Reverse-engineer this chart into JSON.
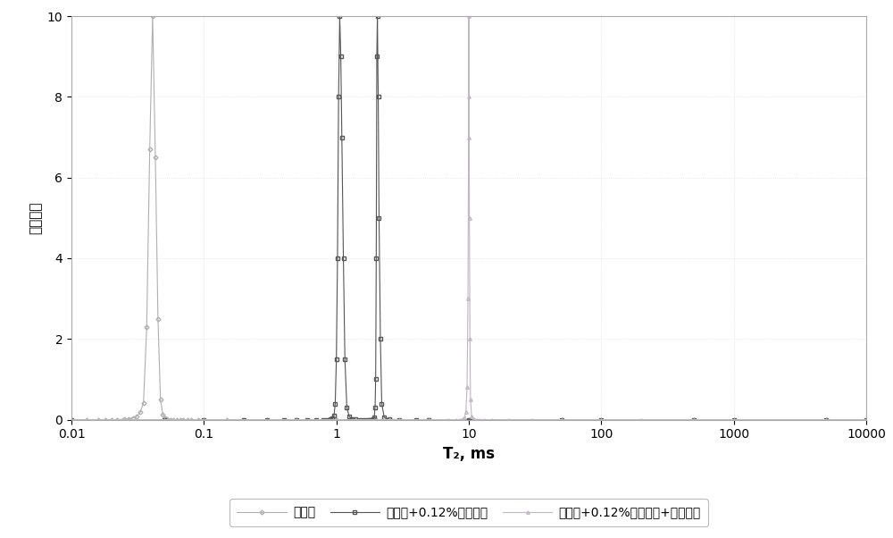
{
  "title": "",
  "xlabel": "T₂, ms",
  "ylabel": "信号幅度",
  "xlim": [
    0.01,
    10000
  ],
  "ylim": [
    0,
    10
  ],
  "yticks": [
    0,
    2,
    4,
    6,
    8,
    10
  ],
  "xtick_labels": [
    "0.01",
    "0.1",
    "1",
    "10",
    "100",
    "1000",
    "10000"
  ],
  "xtick_vals": [
    0.01,
    0.1,
    1,
    10,
    100,
    1000,
    10000
  ],
  "legend": [
    "钒井液",
    "钒井液+0.12%磺化褐煤",
    "钒井液+0.12%磺化褐煤+弛豫试剂"
  ],
  "background_color": "#ffffff",
  "series1": {
    "x": [
      0.01,
      0.013,
      0.016,
      0.018,
      0.02,
      0.022,
      0.025,
      0.027,
      0.029,
      0.031,
      0.033,
      0.035,
      0.037,
      0.039,
      0.041,
      0.043,
      0.045,
      0.047,
      0.049,
      0.051,
      0.053,
      0.056,
      0.059,
      0.062,
      0.066,
      0.07,
      0.075,
      0.08,
      0.09,
      0.1,
      0.15,
      0.2,
      0.3,
      0.5,
      1.0,
      2.0,
      5.0,
      10.0,
      50.0,
      100.0,
      500.0,
      1000.0,
      5000.0,
      10000.0
    ],
    "y": [
      0.0,
      0.0,
      0.0,
      0.0,
      0.0,
      0.0,
      0.01,
      0.02,
      0.04,
      0.08,
      0.18,
      0.42,
      2.3,
      6.7,
      10.0,
      6.5,
      2.5,
      0.5,
      0.12,
      0.04,
      0.01,
      0.0,
      0.0,
      0.0,
      0.0,
      0.0,
      0.0,
      0.0,
      0.0,
      0.0,
      0.0,
      0.0,
      0.0,
      0.0,
      0.0,
      0.0,
      0.0,
      0.0,
      0.0,
      0.0,
      0.0,
      0.0,
      0.0,
      0.0
    ],
    "color": "#b0b0b0",
    "marker": "D",
    "linestyle": "-",
    "markersize": 2.5,
    "linewidth": 0.8
  },
  "series2": {
    "x": [
      0.01,
      0.05,
      0.1,
      0.2,
      0.3,
      0.4,
      0.5,
      0.6,
      0.7,
      0.8,
      0.85,
      0.9,
      0.93,
      0.96,
      0.98,
      1.0,
      1.02,
      1.04,
      1.06,
      1.08,
      1.1,
      1.13,
      1.16,
      1.2,
      1.25,
      1.3,
      1.4,
      1.5,
      1.6,
      1.7,
      1.75,
      1.8,
      1.85,
      1.9,
      1.93,
      1.96,
      1.98,
      2.0,
      2.02,
      2.04,
      2.07,
      2.1,
      2.15,
      2.2,
      2.3,
      2.5,
      3.0,
      4.0,
      5.0,
      10.0,
      50.0,
      100.0,
      500.0,
      1000.0,
      5000.0,
      10000.0
    ],
    "y": [
      0.0,
      0.0,
      0.0,
      0.0,
      0.0,
      0.0,
      0.0,
      0.0,
      0.0,
      0.0,
      0.0,
      0.01,
      0.03,
      0.1,
      0.4,
      1.5,
      4.0,
      8.0,
      10.0,
      9.0,
      7.0,
      4.0,
      1.5,
      0.3,
      0.08,
      0.02,
      0.005,
      0.001,
      0.0,
      0.0,
      0.0,
      0.0,
      0.0,
      0.01,
      0.05,
      0.3,
      1.0,
      4.0,
      9.0,
      10.0,
      8.0,
      5.0,
      2.0,
      0.4,
      0.05,
      0.005,
      0.0,
      0.0,
      0.0,
      0.0,
      0.0,
      0.0,
      0.0,
      0.0,
      0.0,
      0.0
    ],
    "color": "#555555",
    "marker": "s",
    "linestyle": "-",
    "markersize": 2.5,
    "linewidth": 0.8
  },
  "series3": {
    "x": [
      0.01,
      0.05,
      0.1,
      0.5,
      1.0,
      2.0,
      3.0,
      5.0,
      7.0,
      8.0,
      8.5,
      9.0,
      9.3,
      9.5,
      9.7,
      9.85,
      9.95,
      10.0,
      10.05,
      10.1,
      10.2,
      10.3,
      10.5,
      10.8,
      11.0,
      11.5,
      12.0,
      13.0,
      15.0,
      20.0,
      30.0,
      50.0,
      100.0,
      200.0,
      500.0,
      1000.0,
      5000.0,
      10000.0
    ],
    "y": [
      0.0,
      0.0,
      0.0,
      0.0,
      0.0,
      0.0,
      0.0,
      0.0,
      0.0,
      0.0,
      0.0,
      0.01,
      0.05,
      0.2,
      0.8,
      3.0,
      7.0,
      10.0,
      8.0,
      5.0,
      2.0,
      0.5,
      0.08,
      0.01,
      0.002,
      0.0,
      0.0,
      0.0,
      0.0,
      0.0,
      0.0,
      0.0,
      0.0,
      0.0,
      0.0,
      0.0,
      0.0,
      0.0
    ],
    "color": "#c0b8c0",
    "marker": "^",
    "linestyle": "-",
    "markersize": 2.5,
    "linewidth": 0.8
  },
  "border_color": "#aaaaaa",
  "grid_color": "#dddddd",
  "legend_frame_color": "#aaaaaa",
  "xlabel_fontsize": 12,
  "ylabel_fontsize": 11,
  "tick_fontsize": 10,
  "legend_fontsize": 10
}
